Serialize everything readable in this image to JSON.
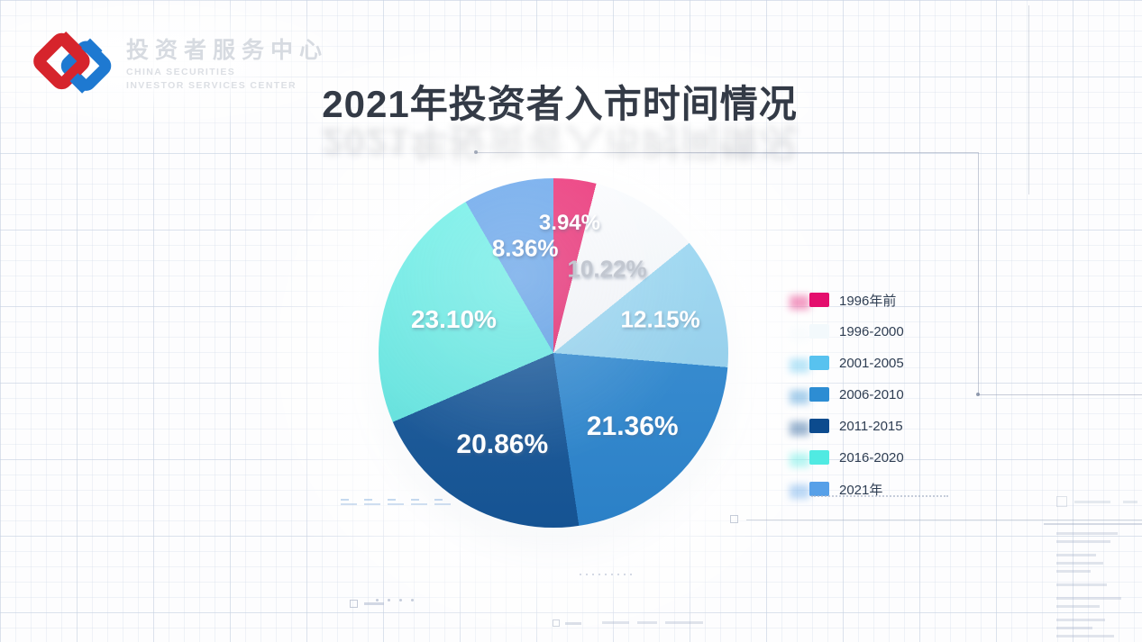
{
  "brand": {
    "name_zh": "投资者服务中心",
    "name_en_line1": "CHINA SECURITIES",
    "name_en_line2": "INVESTOR SERVICES CENTER",
    "logo_colors": {
      "red": "#D6242C",
      "blue": "#1E79D1"
    }
  },
  "title": "2021年投资者入市时间情况",
  "chart_data": {
    "type": "pie",
    "title": "2021年投资者入市时间情况",
    "unit": "%",
    "legend_position": "right",
    "start_angle_deg": 0,
    "direction": "clockwise",
    "slices": [
      {
        "label": "1996年前",
        "value": 3.94,
        "display": "3.94%",
        "color": "#EA2770",
        "legend_color": "#E40E6D",
        "label_color": "#ffffff",
        "label_r": 0.75,
        "label_size": 24
      },
      {
        "label": "1996-2000",
        "value": 10.22,
        "display": "10.22%",
        "color": "#FAFCFE",
        "legend_color": "#F3F9FC",
        "label_color": "#c2c7d0",
        "label_r": 0.57,
        "label_size": 26
      },
      {
        "label": "2001-2005",
        "value": 12.15,
        "display": "12.15%",
        "color": "#9BD9F4",
        "legend_color": "#58C2EF",
        "label_color": "#ffffff",
        "label_r": 0.64,
        "label_size": 26
      },
      {
        "label": "2006-2010",
        "value": 21.36,
        "display": "21.36%",
        "color": "#2F8BD4",
        "legend_color": "#2D8DD3",
        "label_color": "#ffffff",
        "label_r": 0.62,
        "label_size": 30
      },
      {
        "label": "2011-2015",
        "value": 20.86,
        "display": "20.86%",
        "color": "#17589A",
        "legend_color": "#0C4B8E",
        "label_color": "#ffffff",
        "label_r": 0.6,
        "label_size": 30
      },
      {
        "label": "2016-2020",
        "value": 23.1,
        "display": "23.10%",
        "color": "#6BF0E8",
        "legend_color": "#50EAE2",
        "label_color": "#ffffff",
        "label_r": 0.6,
        "label_size": 28
      },
      {
        "label": "2021年",
        "value": 8.36,
        "display": "8.36%",
        "color": "#63A3EB",
        "legend_color": "#57A0E8",
        "label_color": "#ffffff",
        "label_r": 0.62,
        "label_size": 26
      }
    ]
  }
}
